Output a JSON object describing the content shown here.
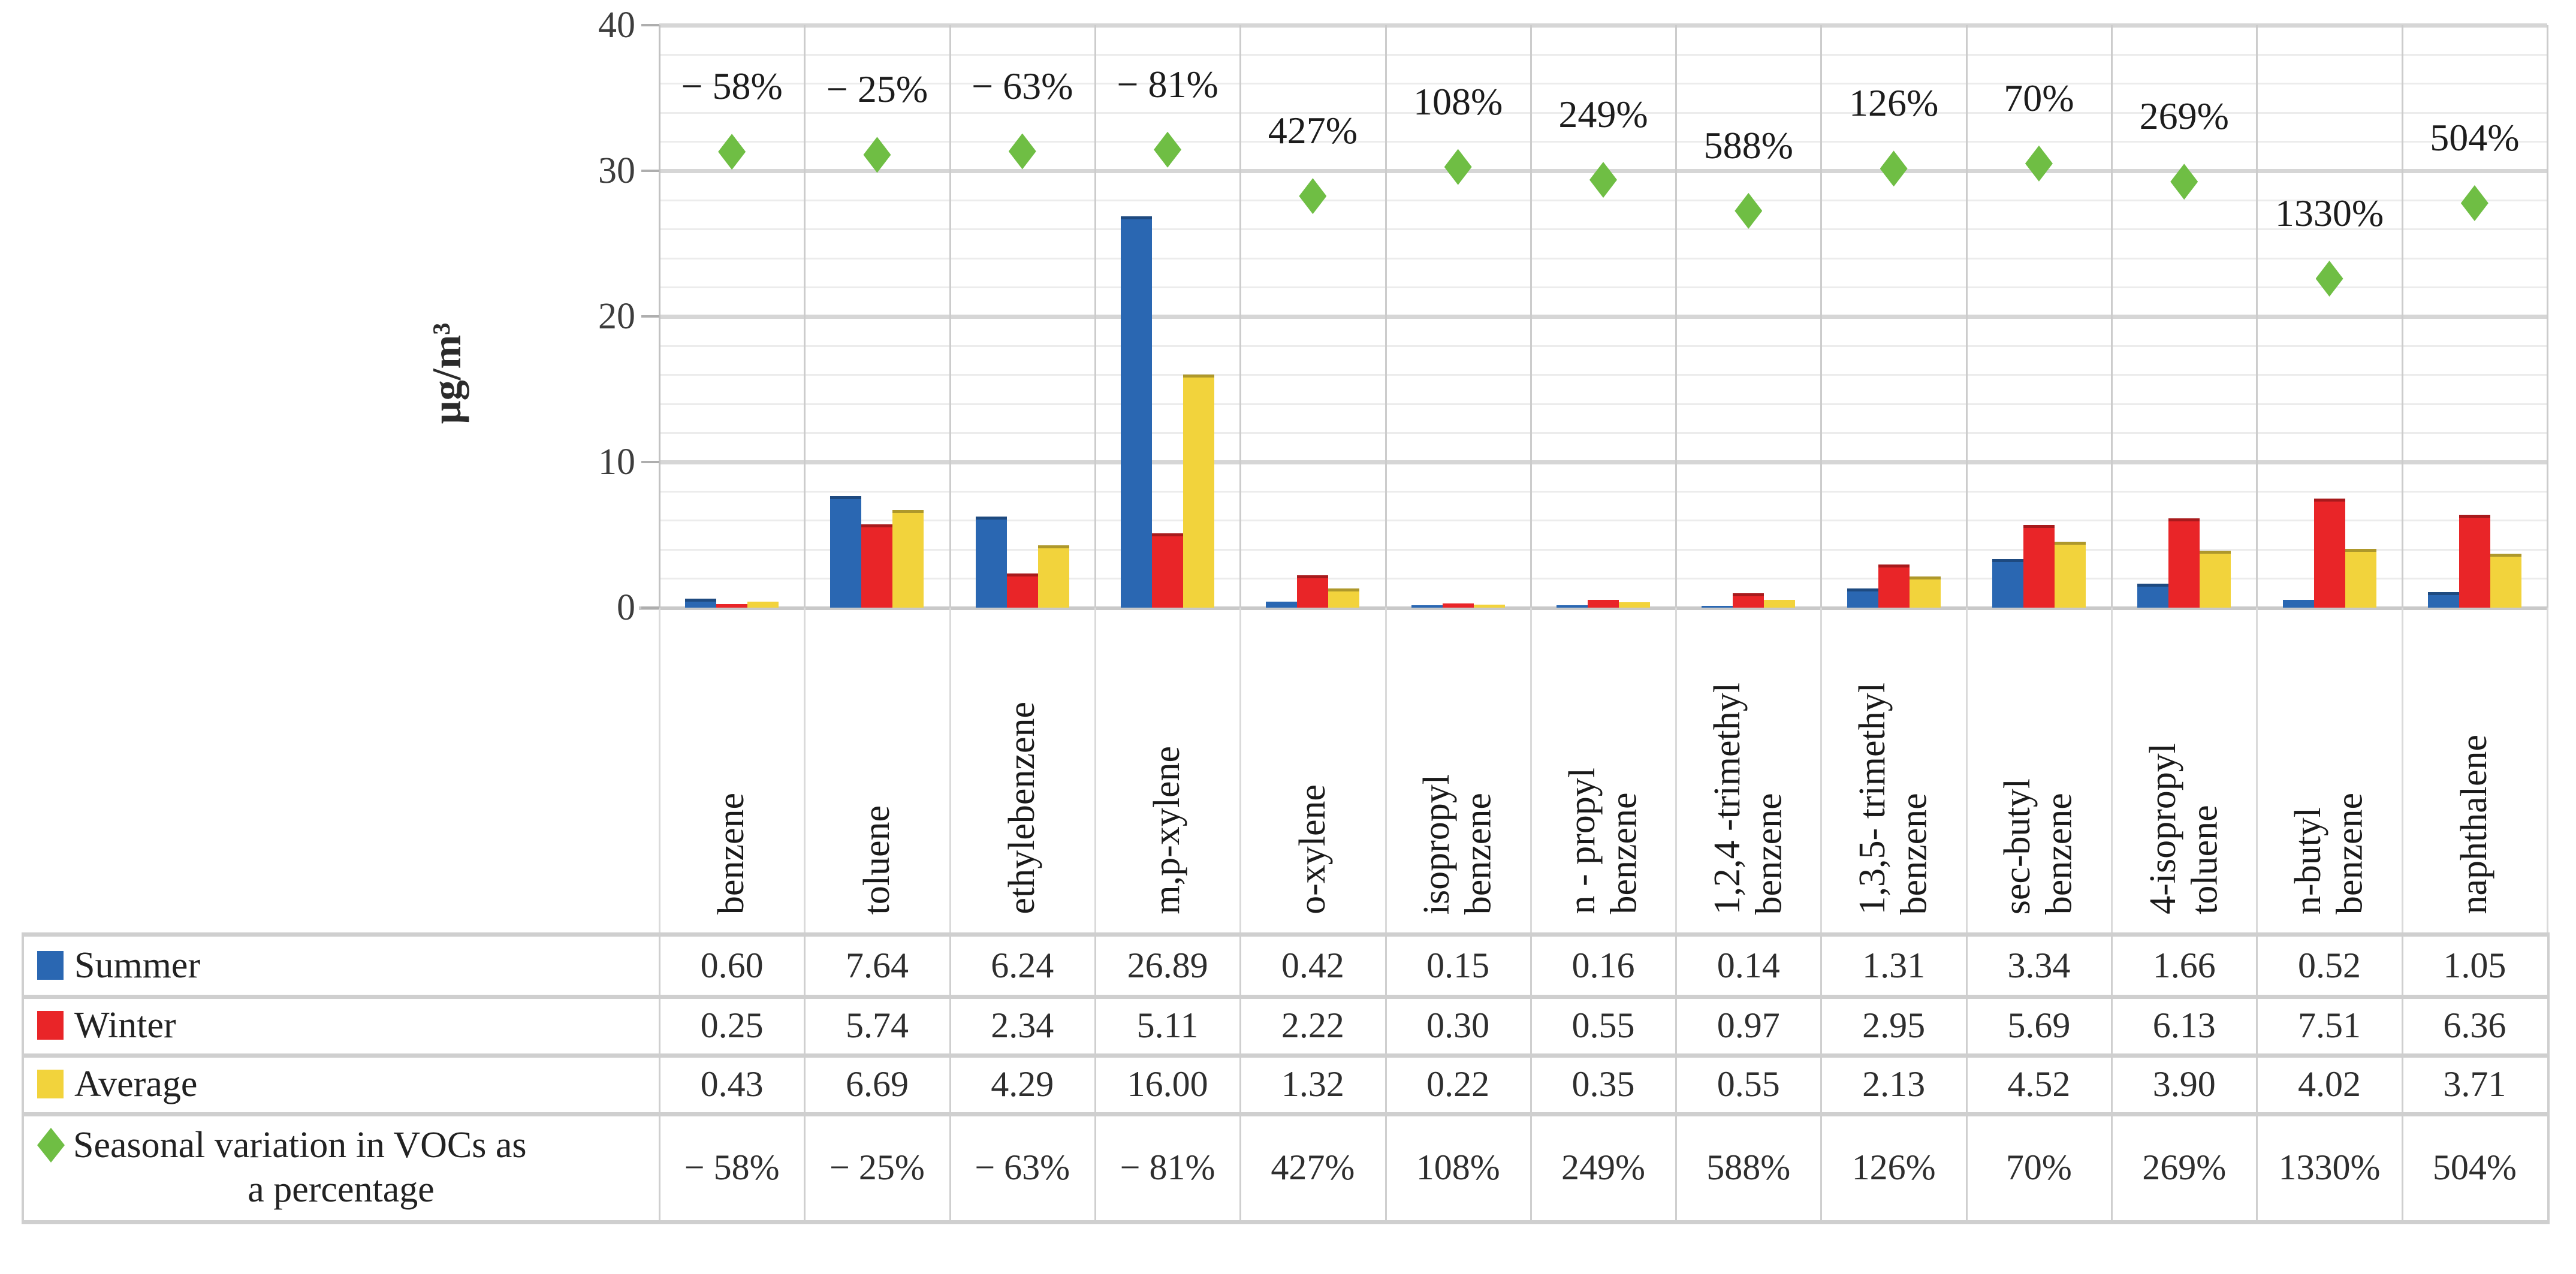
{
  "chart_data": {
    "type": "bar",
    "title": "",
    "ylabel": "µg/m³",
    "ylim": [
      0,
      40
    ],
    "y_ticks": [
      0,
      10,
      20,
      30,
      40
    ],
    "grid": true,
    "categories": [
      "benzene",
      "toluene",
      "ethylebenzene",
      "m,p-xylene",
      "o-xylene",
      "isopropyl\nbenzene",
      "n - propyl\nbenzene",
      "1,2,4 -trimethyl\nbenzene",
      "1,3,5- trimethyl\nbenzene",
      "sec-butyl\nbenzene",
      "4-isopropyl\ntoluene",
      "n-butyl\nbenzene",
      "naphthalene"
    ],
    "series": [
      {
        "name": "Summer",
        "color": "#2a67b2",
        "values": [
          0.6,
          7.64,
          6.24,
          26.89,
          0.42,
          0.15,
          0.16,
          0.14,
          1.31,
          3.34,
          1.66,
          0.52,
          1.05
        ]
      },
      {
        "name": "Winter",
        "color": "#e92528",
        "values": [
          0.25,
          5.74,
          2.34,
          5.11,
          2.22,
          0.3,
          0.55,
          0.97,
          2.95,
          5.69,
          6.13,
          7.51,
          6.36
        ]
      },
      {
        "name": "Average",
        "color": "#f2d33c",
        "values": [
          0.43,
          6.69,
          4.29,
          16.0,
          1.32,
          0.22,
          0.35,
          0.55,
          2.13,
          4.52,
          3.9,
          4.02,
          3.71
        ]
      }
    ],
    "marker_series": {
      "name": "Seasonal variation in VOCs as a percentage",
      "marker": "diamond",
      "color": "#6fbe44",
      "percent_values": [
        -58,
        -25,
        -63,
        -81,
        427,
        108,
        249,
        588,
        126,
        70,
        269,
        1330,
        504
      ],
      "labels": [
        "− 58%",
        "− 25%",
        "− 63%",
        "− 81%",
        "427%",
        "108%",
        "249%",
        "588%",
        "126%",
        "70%",
        "269%",
        "1330%",
        "504%"
      ]
    }
  },
  "table": {
    "rows": [
      {
        "legend_lines": [
          "Summer"
        ],
        "marker": "square",
        "color": "#2a67b2",
        "values": [
          "0.60",
          "7.64",
          "6.24",
          "26.89",
          "0.42",
          "0.15",
          "0.16",
          "0.14",
          "1.31",
          "3.34",
          "1.66",
          "0.52",
          "1.05"
        ]
      },
      {
        "legend_lines": [
          "Winter"
        ],
        "marker": "square",
        "color": "#e92528",
        "values": [
          "0.25",
          "5.74",
          "2.34",
          "5.11",
          "2.22",
          "0.30",
          "0.55",
          "0.97",
          "2.95",
          "5.69",
          "6.13",
          "7.51",
          "6.36"
        ]
      },
      {
        "legend_lines": [
          "Average"
        ],
        "marker": "square",
        "color": "#f2d33c",
        "values": [
          "0.43",
          "6.69",
          "4.29",
          "16.00",
          "1.32",
          "0.22",
          "0.35",
          "0.55",
          "2.13",
          "4.52",
          "3.90",
          "4.02",
          "3.71"
        ]
      },
      {
        "legend_lines": [
          "Seasonal variation in VOCs as",
          "a  percentage"
        ],
        "marker": "diamond",
        "color": "#6fbe44",
        "values": [
          "− 58%",
          "− 25%",
          "− 63%",
          "− 81%",
          "427%",
          "108%",
          "249%",
          "588%",
          "126%",
          "70%",
          "269%",
          "1330%",
          "504%"
        ]
      }
    ]
  }
}
